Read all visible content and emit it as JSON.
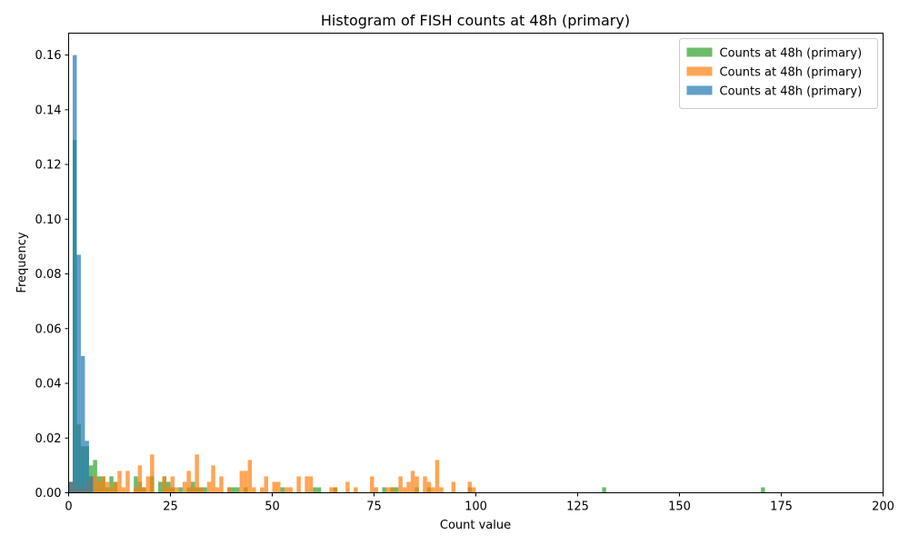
{
  "chart_data": {
    "type": "bar",
    "title": "Histogram of FISH counts at 48h (primary)",
    "xlabel": "Count value",
    "ylabel": "Frequency",
    "xlim": [
      0,
      200
    ],
    "ylim": [
      0,
      0.168
    ],
    "xticks": [
      0,
      25,
      50,
      75,
      100,
      125,
      150,
      175,
      200
    ],
    "yticks": [
      0.0,
      0.02,
      0.04,
      0.06,
      0.08,
      0.1,
      0.12,
      0.14,
      0.16
    ],
    "ytick_labels": [
      "0.00",
      "0.02",
      "0.04",
      "0.06",
      "0.08",
      "0.10",
      "0.12",
      "0.14",
      "0.16"
    ],
    "grid": false,
    "legend_position": "top-right",
    "bin_width": 1,
    "series": [
      {
        "name": "Counts at 48h (primary)",
        "color": "#2ca02c",
        "opacity": 0.7,
        "bins": [
          [
            0,
            0.004
          ],
          [
            1,
            0.129
          ],
          [
            2,
            0.025
          ],
          [
            3,
            0.017
          ],
          [
            4,
            0.017
          ],
          [
            5,
            0.01
          ],
          [
            6,
            0.012
          ],
          [
            7,
            0.006
          ],
          [
            8,
            0.006
          ],
          [
            9,
            0.002
          ],
          [
            10,
            0.006
          ],
          [
            11,
            0.004
          ],
          [
            16,
            0.006
          ],
          [
            17,
            0.004
          ],
          [
            18,
            0.002
          ],
          [
            20,
            0.006
          ],
          [
            22,
            0.004
          ],
          [
            23,
            0.006
          ],
          [
            24,
            0.004
          ],
          [
            25,
            0.002
          ],
          [
            27,
            0.002
          ],
          [
            29,
            0.002
          ],
          [
            30,
            0.004
          ],
          [
            31,
            0.002
          ],
          [
            32,
            0.002
          ],
          [
            33,
            0.002
          ],
          [
            39,
            0.002
          ],
          [
            40,
            0.002
          ],
          [
            41,
            0.002
          ],
          [
            43,
            0.002
          ],
          [
            52,
            0.002
          ],
          [
            60,
            0.002
          ],
          [
            61,
            0.002
          ],
          [
            65,
            0.002
          ],
          [
            77,
            0.002
          ],
          [
            79,
            0.002
          ],
          [
            80,
            0.002
          ],
          [
            85,
            0.002
          ],
          [
            88,
            0.002
          ],
          [
            98,
            0.002
          ],
          [
            131,
            0.002
          ],
          [
            170,
            0.002
          ]
        ]
      },
      {
        "name": "Counts at 48h (primary)",
        "color": "#ff7f0e",
        "opacity": 0.7,
        "bins": [
          [
            0,
            0.004
          ],
          [
            1,
            0.004
          ],
          [
            2,
            0.002
          ],
          [
            3,
            0.002
          ],
          [
            4,
            0.004
          ],
          [
            5,
            0.006
          ],
          [
            6,
            0.006
          ],
          [
            7,
            0.004
          ],
          [
            8,
            0.006
          ],
          [
            9,
            0.004
          ],
          [
            10,
            0.002
          ],
          [
            11,
            0.004
          ],
          [
            12,
            0.008
          ],
          [
            13,
            0.002
          ],
          [
            14,
            0.008
          ],
          [
            16,
            0.002
          ],
          [
            17,
            0.01
          ],
          [
            18,
            0.002
          ],
          [
            19,
            0.006
          ],
          [
            20,
            0.014
          ],
          [
            23,
            0.006
          ],
          [
            24,
            0.002
          ],
          [
            25,
            0.006
          ],
          [
            26,
            0.002
          ],
          [
            28,
            0.004
          ],
          [
            29,
            0.008
          ],
          [
            30,
            0.002
          ],
          [
            31,
            0.014
          ],
          [
            32,
            0.002
          ],
          [
            34,
            0.004
          ],
          [
            35,
            0.01
          ],
          [
            36,
            0.002
          ],
          [
            37,
            0.006
          ],
          [
            39,
            0.002
          ],
          [
            42,
            0.008
          ],
          [
            43,
            0.008
          ],
          [
            44,
            0.012
          ],
          [
            45,
            0.002
          ],
          [
            47,
            0.002
          ],
          [
            48,
            0.006
          ],
          [
            50,
            0.004
          ],
          [
            51,
            0.004
          ],
          [
            53,
            0.002
          ],
          [
            54,
            0.002
          ],
          [
            56,
            0.006
          ],
          [
            58,
            0.006
          ],
          [
            59,
            0.006
          ],
          [
            64,
            0.002
          ],
          [
            65,
            0.002
          ],
          [
            68,
            0.004
          ],
          [
            70,
            0.002
          ],
          [
            74,
            0.006
          ],
          [
            75,
            0.002
          ],
          [
            78,
            0.002
          ],
          [
            79,
            0.002
          ],
          [
            81,
            0.006
          ],
          [
            82,
            0.002
          ],
          [
            83,
            0.004
          ],
          [
            84,
            0.008
          ],
          [
            85,
            0.006
          ],
          [
            87,
            0.006
          ],
          [
            88,
            0.004
          ],
          [
            89,
            0.002
          ],
          [
            90,
            0.012
          ],
          [
            91,
            0.002
          ],
          [
            94,
            0.004
          ],
          [
            98,
            0.004
          ],
          [
            99,
            0.002
          ]
        ]
      },
      {
        "name": "Counts at 48h (primary)",
        "color": "#1f77b4",
        "opacity": 0.7,
        "bins": [
          [
            0,
            0.004
          ],
          [
            1,
            0.16
          ],
          [
            2,
            0.087
          ],
          [
            3,
            0.05
          ],
          [
            4,
            0.019
          ],
          [
            5,
            0.006
          ]
        ]
      }
    ]
  }
}
